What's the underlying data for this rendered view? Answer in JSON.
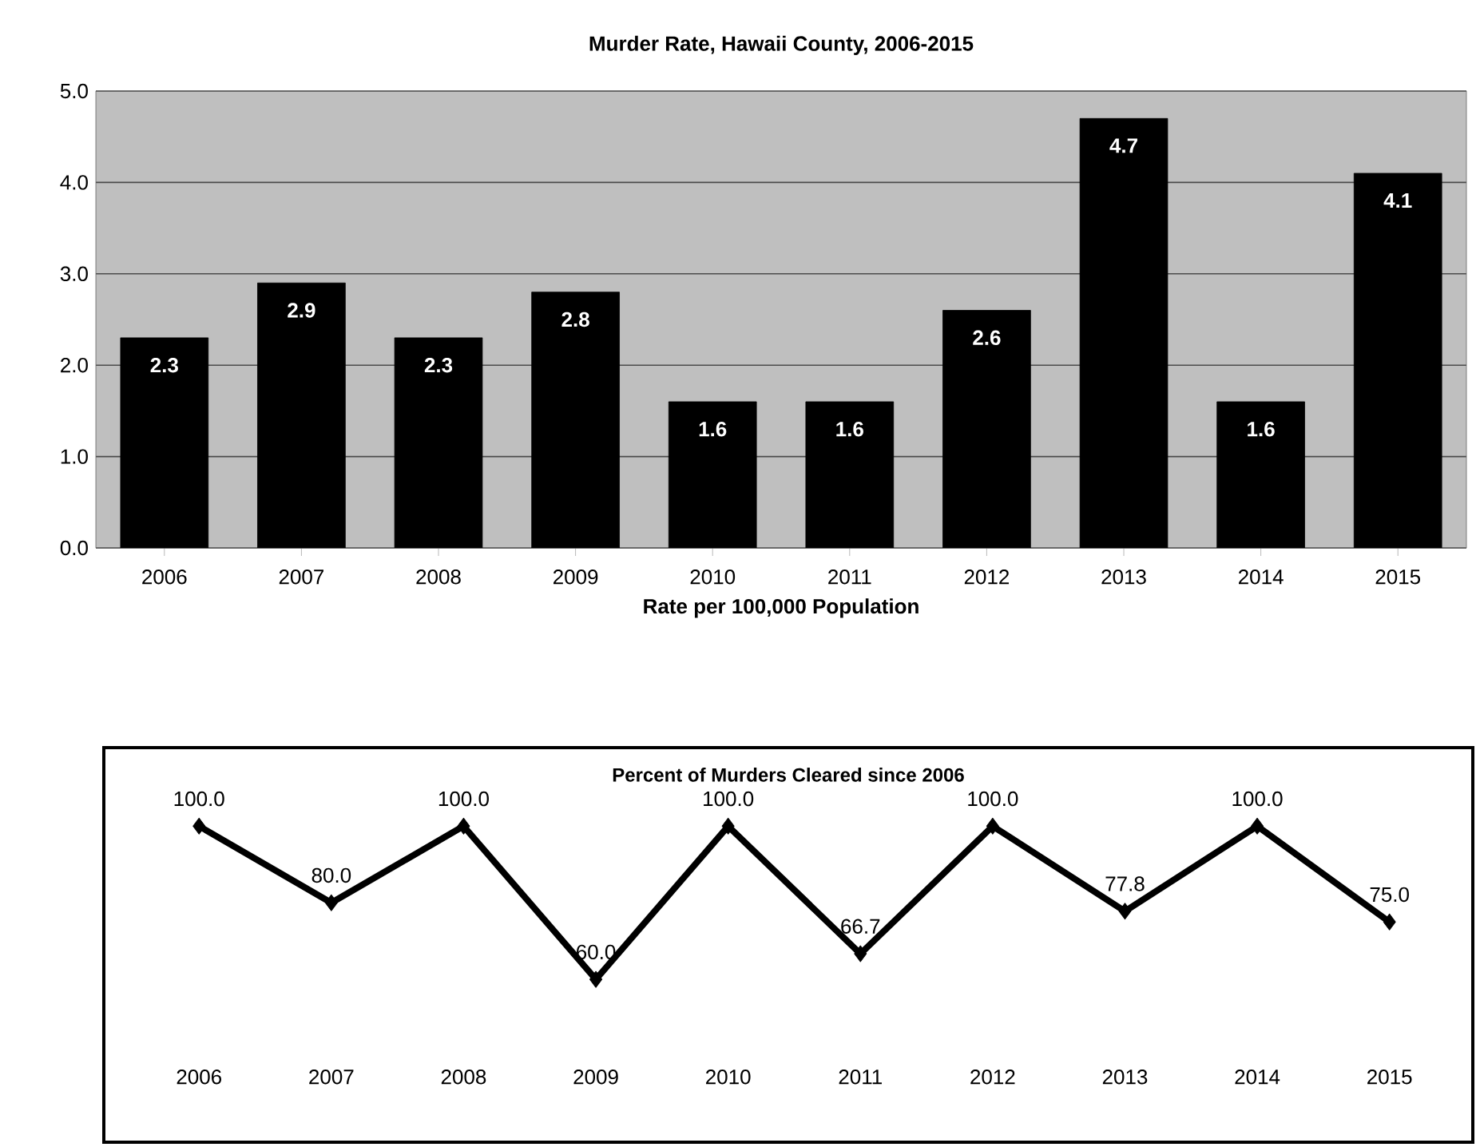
{
  "chart_data": [
    {
      "type": "bar",
      "title": "Murder Rate, Hawaii County, 2006-2015",
      "xlabel": "Rate per 100,000 Population",
      "categories": [
        "2006",
        "2007",
        "2008",
        "2009",
        "2010",
        "2011",
        "2012",
        "2013",
        "2014",
        "2015"
      ],
      "values": [
        2.3,
        2.9,
        2.3,
        2.8,
        1.6,
        1.6,
        2.6,
        4.7,
        1.6,
        4.1
      ],
      "color": "#000000",
      "ylim": [
        0,
        5
      ],
      "yticks": [
        {
          "value": 0,
          "label": "0.0"
        },
        {
          "value": 1,
          "label": "1.0"
        },
        {
          "value": 2,
          "label": "2.0"
        },
        {
          "value": 3,
          "label": "3.0"
        },
        {
          "value": 4,
          "label": "4.0"
        },
        {
          "value": 5,
          "label": "5.0"
        }
      ],
      "grid": "y",
      "data_labels": true
    },
    {
      "type": "line",
      "title": "Percent of Murders Cleared since 2006",
      "categories": [
        "2006",
        "2007",
        "2008",
        "2009",
        "2010",
        "2011",
        "2012",
        "2013",
        "2014",
        "2015"
      ],
      "values": [
        100,
        80,
        100,
        60,
        100,
        66.7,
        100,
        77.8,
        100,
        75
      ],
      "value_labels": [
        "100.0",
        "80.0",
        "100.0",
        "60.0",
        "100.0",
        "66.7",
        "100.0",
        "77.8",
        "100.0",
        "75.0"
      ],
      "color": "#000000",
      "marker": "diamond",
      "line_style": "solid"
    }
  ]
}
